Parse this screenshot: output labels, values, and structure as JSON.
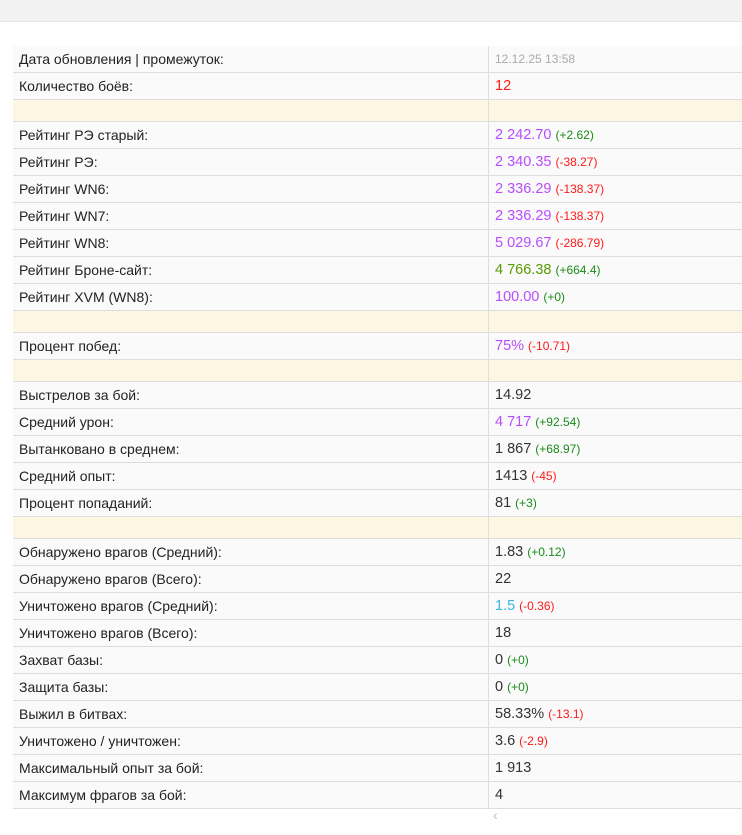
{
  "colors": {
    "purple": "#b84dff",
    "red": "#ff1a1a",
    "green": "#1a8a1a",
    "olive": "#5a9a00",
    "cyan": "#3bb6e0",
    "dark": "#333333",
    "muted": "#aaaaaa",
    "spacer": "#fdf6e3"
  },
  "rows": [
    {
      "label": "Дата обновления | промежуток:",
      "value": "12.12.25 13:58",
      "style": "muted"
    },
    {
      "label": "Количество боёв:",
      "value": "12",
      "color": "red"
    },
    {
      "spacer": true
    },
    {
      "label": "Рейтинг РЭ старый:",
      "value": "2 242.70",
      "color": "purple",
      "delta": "(+2.62)",
      "delta_color": "green"
    },
    {
      "label": "Рейтинг РЭ:",
      "value": "2 340.35",
      "color": "purple",
      "delta": "(-38.27)",
      "delta_color": "red"
    },
    {
      "label": "Рейтинг WN6:",
      "value": "2 336.29",
      "color": "purple",
      "delta": "(-138.37)",
      "delta_color": "red"
    },
    {
      "label": "Рейтинг WN7:",
      "value": "2 336.29",
      "color": "purple",
      "delta": "(-138.37)",
      "delta_color": "red"
    },
    {
      "label": "Рейтинг WN8:",
      "value": "5 029.67",
      "color": "purple",
      "delta": "(-286.79)",
      "delta_color": "red"
    },
    {
      "label": "Рейтинг Броне-сайт:",
      "value": "4 766.38",
      "color": "olive",
      "delta": "(+664.4)",
      "delta_color": "green"
    },
    {
      "label": "Рейтинг XVM (WN8):",
      "value": "100.00",
      "color": "purple",
      "delta": "(+0)",
      "delta_color": "green"
    },
    {
      "spacer": true
    },
    {
      "label": "Процент побед:",
      "value": "75%",
      "color": "purple",
      "delta": "(-10.71)",
      "delta_color": "red"
    },
    {
      "spacer": true
    },
    {
      "label": "Выстрелов за бой:",
      "value": "14.92",
      "color": "dark"
    },
    {
      "label": "Средний урон:",
      "value": "4 717",
      "color": "purple",
      "delta": "(+92.54)",
      "delta_color": "green"
    },
    {
      "label": "Вытанковано в среднем:",
      "value": "1 867",
      "color": "dark",
      "delta": "(+68.97)",
      "delta_color": "green"
    },
    {
      "label": "Средний опыт:",
      "value": "1413",
      "color": "dark",
      "delta": "(-45)",
      "delta_color": "red"
    },
    {
      "label": "Процент попаданий:",
      "value": "81",
      "color": "dark",
      "delta": "(+3)",
      "delta_color": "green"
    },
    {
      "spacer": true
    },
    {
      "label": "Обнаружено врагов (Средний):",
      "value": "1.83",
      "color": "dark",
      "delta": "(+0.12)",
      "delta_color": "green"
    },
    {
      "label": "Обнаружено врагов (Всего):",
      "value": "22",
      "color": "dark"
    },
    {
      "label": "Уничтожено врагов (Средний):",
      "value": "1.5",
      "color": "cyan",
      "delta": "(-0.36)",
      "delta_color": "red"
    },
    {
      "label": "Уничтожено врагов (Всего):",
      "value": "18",
      "color": "dark"
    },
    {
      "label": "Захват базы:",
      "value": "0",
      "color": "dark",
      "delta": "(+0)",
      "delta_color": "green"
    },
    {
      "label": "Защита базы:",
      "value": "0",
      "color": "dark",
      "delta": "(+0)",
      "delta_color": "green"
    },
    {
      "label": "Выжил в битвах:",
      "value": "58.33%",
      "color": "dark",
      "delta": "(-13.1)",
      "delta_color": "red"
    },
    {
      "label": "Уничтожено / уничтожен:",
      "value": "3.6",
      "color": "dark",
      "delta": "(-2.9)",
      "delta_color": "red"
    },
    {
      "label": "Максимальный опыт за бой:",
      "value": "1 913",
      "color": "dark"
    },
    {
      "label": "Максимум фрагов за бой:",
      "value": "4",
      "color": "dark"
    }
  ],
  "scrollbar": {
    "arrow_icon": "chevron-left-icon",
    "arrow": "‹"
  }
}
